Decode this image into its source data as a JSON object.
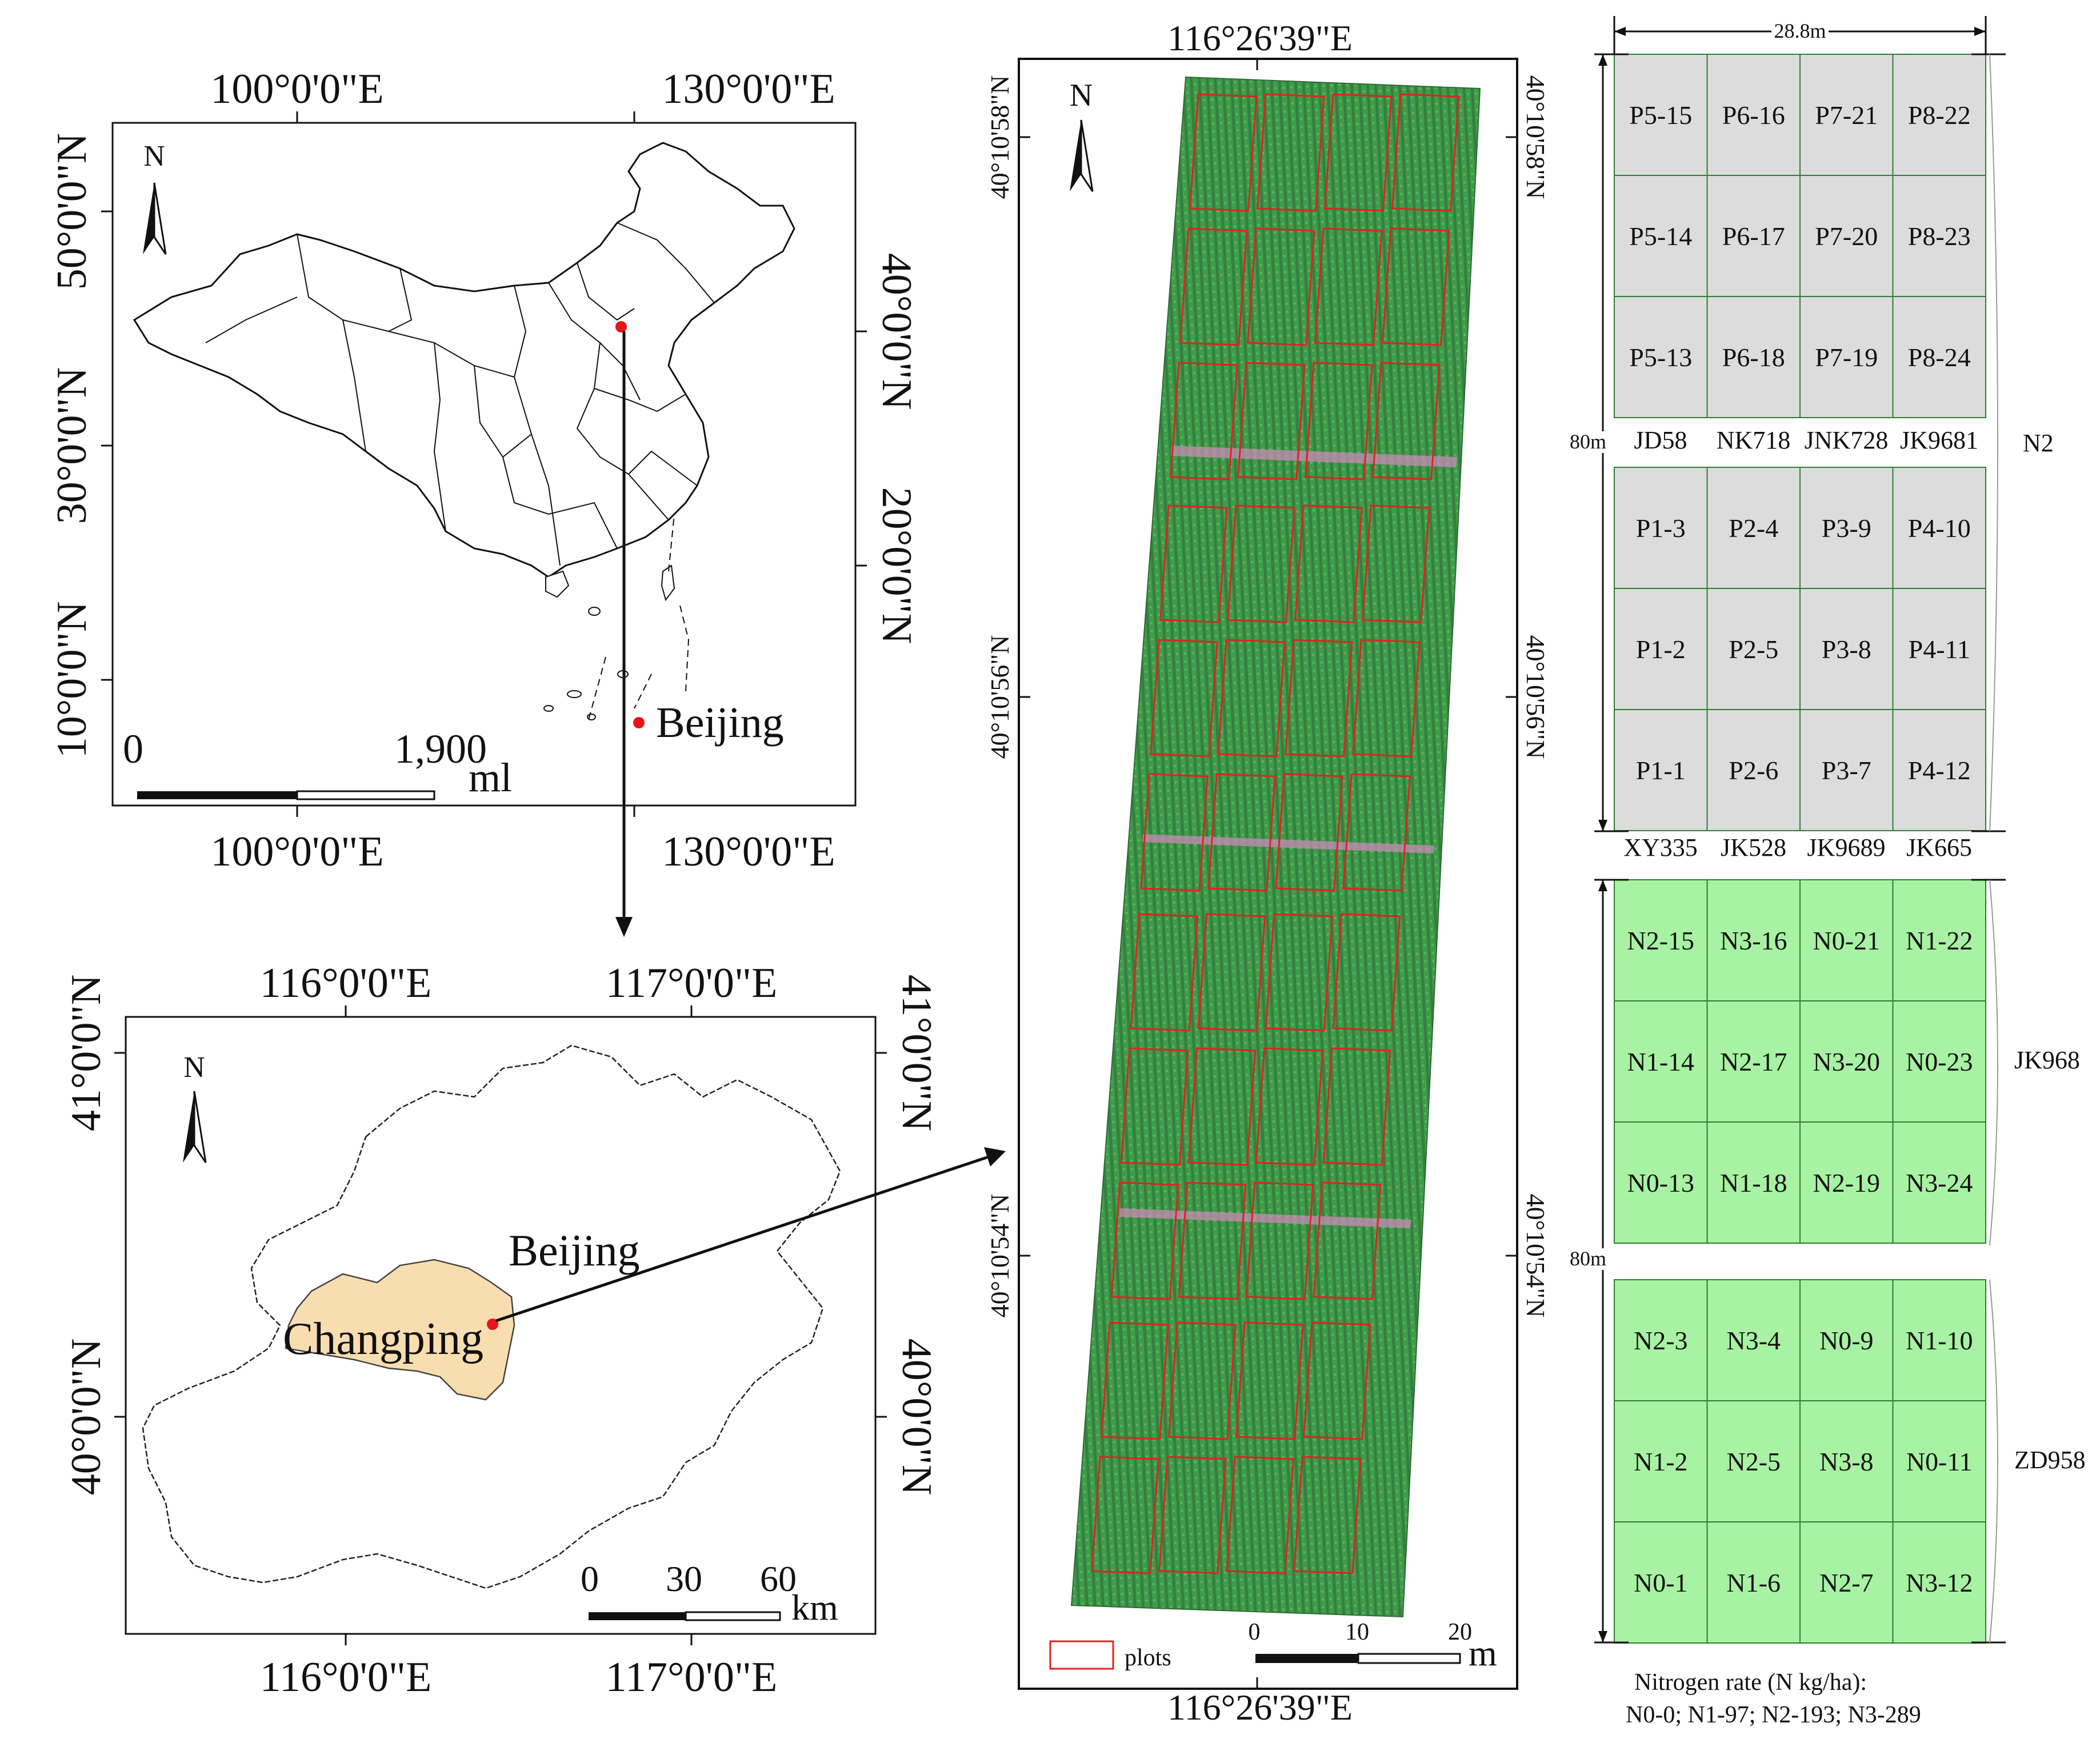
{
  "colors": {
    "marker": "#e8141b",
    "changping_fill": "#f8ddb0",
    "plot_outline": "#e0231f",
    "grid_fill_top": "#dcdcdc",
    "grid_fill_bottom": "#a8f2a3",
    "grid_line": "#2e7d32",
    "field_green": "#3d9a48"
  },
  "icons": {
    "north_arrow": "north-arrow-icon",
    "location_marker": "red-dot-icon"
  },
  "china_map": {
    "north_label": "N",
    "top_lon_labels": [
      "100°0'0\"E",
      "130°0'0\"E"
    ],
    "bottom_lon_labels": [
      "100°0'0\"E",
      "130°0'0\"E"
    ],
    "left_lat_labels": [
      "50°0'0\"N",
      "30°0'0\"N",
      "10°0'0\"N"
    ],
    "right_lat_labels": [
      "40°0'0\"N",
      "20°0'0\"N"
    ],
    "place_label": "Beijing",
    "scale_start": "0",
    "scale_end": "1,900",
    "scale_unit": "ml"
  },
  "beijing_map": {
    "north_label": "N",
    "top_lon_labels": [
      "116°0'0\"E",
      "117°0'0\"E"
    ],
    "bottom_lon_labels": [
      "116°0'0\"E",
      "117°0'0\"E"
    ],
    "left_lat_labels": [
      "41°0'0\"N",
      "40°0'0\"N"
    ],
    "right_lat_labels": [
      "41°0'0\"N",
      "40°0'0\"N"
    ],
    "city_label": "Beijing",
    "district_label": "Changping",
    "scale_ticks": [
      "0",
      "30",
      "60"
    ],
    "scale_unit": "km"
  },
  "uav_image": {
    "north_label": "N",
    "top_lon_label": "116°26'39\"E",
    "bottom_lon_label": "116°26'39\"E",
    "left_lat_labels": [
      "40°10'58\"N",
      "40°10'56\"N",
      "40°10'54\"N"
    ],
    "right_lat_labels": [
      "40°10'58\"N",
      "40°10'56\"N",
      "40°10'54\"N"
    ],
    "legend_label": "plots",
    "scale_ticks": [
      "0",
      "10",
      "20"
    ],
    "scale_unit": "m"
  },
  "layout_diagram": {
    "width_label": "28.8m",
    "top_height_label": "80m",
    "bottom_height_label": "80m",
    "top_section_label": "N2",
    "bottom_section_labels": [
      "JK968",
      "ZD958"
    ],
    "top_grid_rows": [
      [
        "P5-15",
        "P6-16",
        "P7-21",
        "P8-22"
      ],
      [
        "P5-14",
        "P6-17",
        "P7-20",
        "P8-23"
      ],
      [
        "P5-13",
        "P6-18",
        "P7-19",
        "P8-24"
      ]
    ],
    "top_middle_labels": [
      "JD58",
      "NK718",
      "JNK728",
      "JK9681"
    ],
    "middle_grid_rows": [
      [
        "P1-3",
        "P2-4",
        "P3-9",
        "P4-10"
      ],
      [
        "P1-2",
        "P2-5",
        "P3-8",
        "P4-11"
      ],
      [
        "P1-1",
        "P2-6",
        "P3-7",
        "P4-12"
      ]
    ],
    "top_bottom_labels": [
      "XY335",
      "JK528",
      "JK9689",
      "JK665"
    ],
    "bottom_grid1_rows": [
      [
        "N2-15",
        "N3-16",
        "N0-21",
        "N1-22"
      ],
      [
        "N1-14",
        "N2-17",
        "N3-20",
        "N0-23"
      ],
      [
        "N0-13",
        "N1-18",
        "N2-19",
        "N3-24"
      ]
    ],
    "bottom_grid2_rows": [
      [
        "N2-3",
        "N3-4",
        "N0-9",
        "N1-10"
      ],
      [
        "N1-2",
        "N2-5",
        "N3-8",
        "N0-11"
      ],
      [
        "N0-1",
        "N1-6",
        "N2-7",
        "N3-12"
      ]
    ],
    "nitrogen_note_title": "Nitrogen rate (N kg/ha):",
    "nitrogen_note_values": "N0-0;  N1-97; N2-193; N3-289"
  }
}
